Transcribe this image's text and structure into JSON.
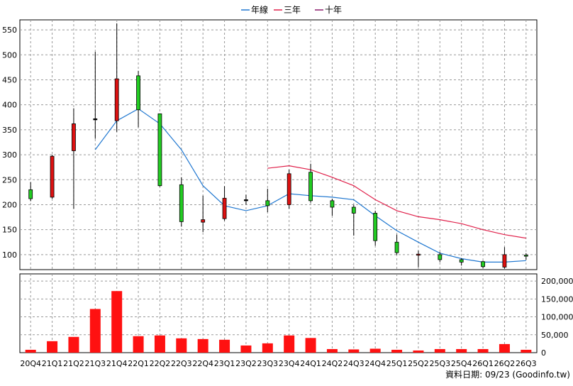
{
  "legend": [
    {
      "name": "年線",
      "color": "#1f77d0"
    },
    {
      "name": "三年",
      "color": "#e0204a"
    },
    {
      "name": "十年",
      "color": "#8b1a6b"
    }
  ],
  "footer": "資料日期: 09/23  (Goodinfo.tw)",
  "chart_data": {
    "type": "candlestick",
    "categories": [
      "20Q4",
      "21Q1",
      "21Q2",
      "21Q3",
      "21Q4",
      "22Q1",
      "22Q2",
      "22Q3",
      "22Q4",
      "23Q1",
      "23Q2",
      "23Q3",
      "23Q4",
      "24Q1",
      "24Q2",
      "24Q3",
      "24Q4",
      "25Q1",
      "25Q2",
      "25Q3",
      "25Q4",
      "26Q1",
      "26Q2",
      "26Q3"
    ],
    "price_ylim": [
      70,
      570
    ],
    "price_ticks": [
      100,
      150,
      200,
      250,
      300,
      350,
      400,
      450,
      500,
      550
    ],
    "volume_ylim": [
      0,
      220000
    ],
    "volume_ticks": [
      0,
      50000,
      100000,
      150000,
      200000
    ],
    "volume_tick_labels": [
      "0",
      "50,000",
      "100,000",
      "150,000",
      "200,000"
    ],
    "candles": [
      {
        "open": 212,
        "close": 230,
        "high": 245,
        "low": 207
      },
      {
        "open": 297,
        "close": 215,
        "high": 300,
        "low": 212
      },
      {
        "open": 362,
        "close": 308,
        "high": 393,
        "low": 192
      },
      {
        "open": 372,
        "close": 372,
        "high": 506,
        "low": 332
      },
      {
        "open": 452,
        "close": 368,
        "high": 563,
        "low": 346
      },
      {
        "open": 390,
        "close": 458,
        "high": 468,
        "low": 355
      },
      {
        "open": 238,
        "close": 382,
        "high": 382,
        "low": 236
      },
      {
        "open": 166,
        "close": 240,
        "high": 255,
        "low": 156
      },
      {
        "open": 170,
        "close": 165,
        "high": 218,
        "low": 145
      },
      {
        "open": 213,
        "close": 172,
        "high": 237,
        "low": 168
      },
      {
        "open": 210,
        "close": 210,
        "high": 220,
        "low": 200
      },
      {
        "open": 198,
        "close": 208,
        "high": 232,
        "low": 185
      },
      {
        "open": 262,
        "close": 200,
        "high": 270,
        "low": 192
      },
      {
        "open": 208,
        "close": 265,
        "high": 282,
        "low": 204
      },
      {
        "open": 195,
        "close": 208,
        "high": 212,
        "low": 178
      },
      {
        "open": 183,
        "close": 195,
        "high": 200,
        "low": 138
      },
      {
        "open": 128,
        "close": 183,
        "high": 188,
        "low": 118
      },
      {
        "open": 104,
        "close": 125,
        "high": 140,
        "low": 100
      },
      {
        "open": 101,
        "close": 100,
        "high": 108,
        "low": 75
      },
      {
        "open": 90,
        "close": 100,
        "high": 105,
        "low": 85
      },
      {
        "open": 85,
        "close": 90,
        "high": 93,
        "low": 78
      },
      {
        "open": 76,
        "close": 86,
        "high": 88,
        "low": 73
      },
      {
        "open": 100,
        "close": 75,
        "high": 115,
        "low": 72
      },
      {
        "open": 97,
        "close": 99,
        "high": 103,
        "low": 90
      }
    ],
    "series": [
      {
        "name": "年線",
        "values": [
          null,
          null,
          null,
          310,
          368,
          392,
          362,
          310,
          238,
          198,
          188,
          198,
          222,
          218,
          215,
          210,
          178,
          148,
          125,
          103,
          92,
          85,
          85,
          88
        ]
      },
      {
        "name": "三年",
        "values": [
          null,
          null,
          null,
          null,
          null,
          null,
          null,
          null,
          null,
          null,
          null,
          273,
          278,
          270,
          255,
          238,
          210,
          188,
          176,
          170,
          162,
          150,
          140,
          133
        ]
      }
    ],
    "volume": [
      8000,
      32000,
      44000,
      122000,
      172000,
      46000,
      48000,
      40000,
      38000,
      36000,
      20000,
      26000,
      48000,
      41000,
      10000,
      9000,
      11000,
      8000,
      6000,
      10000,
      10000,
      10000,
      24000,
      8000
    ],
    "grid": true
  }
}
